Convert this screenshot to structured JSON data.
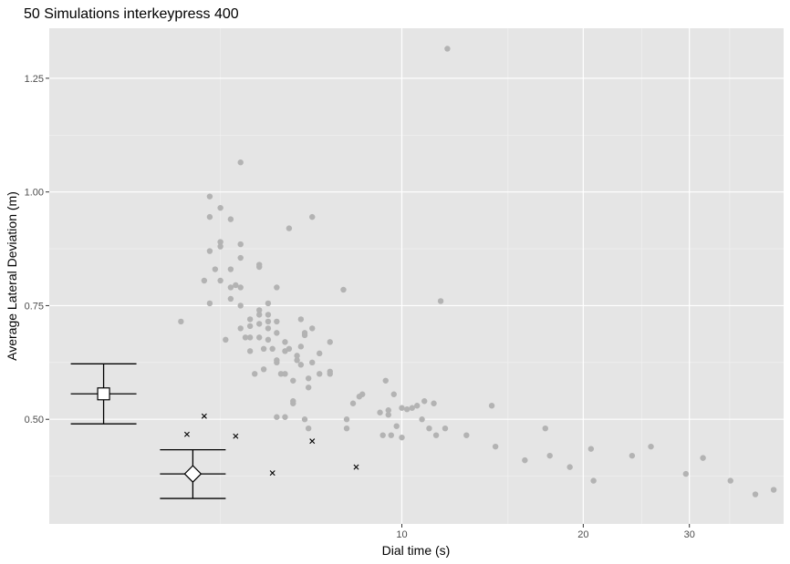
{
  "chart_data": {
    "type": "scatter",
    "title": "50 Simulations interkeypress 400",
    "xlabel": "Dial time (s)",
    "ylabel": "Average Lateral Deviation (m)",
    "x_scale": "log",
    "xlim": [
      2.6,
      43
    ],
    "ylim": [
      0.27,
      1.36
    ],
    "x_major_ticks": [
      10,
      20,
      30
    ],
    "x_minor_ticks": [
      5,
      15,
      25,
      35
    ],
    "x_tick_labels": [
      "10",
      "20",
      "30"
    ],
    "y_major_ticks": [
      0.5,
      0.75,
      1.0,
      1.25
    ],
    "y_tick_labels": [
      "0.50",
      "0.75",
      "1.00",
      "1.25"
    ],
    "y_minor_ticks": [
      0.375,
      0.625,
      0.875,
      1.125
    ],
    "grid": true,
    "background": "#e5e5e5",
    "colors": {
      "simulation_point": "#b3b3b3",
      "human_point": "#000000",
      "summary": "#000000",
      "summary_fill": "#ffffff"
    },
    "series": [
      {
        "marker": "circle",
        "points": [
          [
            4.3,
            0.715
          ],
          [
            4.7,
            0.805
          ],
          [
            4.8,
            0.99
          ],
          [
            4.8,
            0.945
          ],
          [
            4.8,
            0.87
          ],
          [
            4.8,
            0.755
          ],
          [
            4.9,
            0.83
          ],
          [
            5.0,
            0.965
          ],
          [
            5.0,
            0.88
          ],
          [
            5.0,
            0.89
          ],
          [
            5.0,
            0.805
          ],
          [
            5.1,
            0.675
          ],
          [
            5.2,
            0.94
          ],
          [
            5.2,
            0.83
          ],
          [
            5.2,
            0.79
          ],
          [
            5.2,
            0.765
          ],
          [
            5.3,
            0.795
          ],
          [
            5.4,
            0.79
          ],
          [
            5.4,
            1.065
          ],
          [
            5.4,
            0.885
          ],
          [
            5.4,
            0.855
          ],
          [
            5.4,
            0.75
          ],
          [
            5.4,
            0.7
          ],
          [
            5.5,
            0.68
          ],
          [
            5.6,
            0.72
          ],
          [
            5.6,
            0.705
          ],
          [
            5.6,
            0.68
          ],
          [
            5.6,
            0.65
          ],
          [
            5.7,
            0.6
          ],
          [
            5.8,
            0.84
          ],
          [
            5.8,
            0.835
          ],
          [
            5.8,
            0.74
          ],
          [
            5.8,
            0.73
          ],
          [
            5.8,
            0.71
          ],
          [
            5.8,
            0.68
          ],
          [
            5.9,
            0.61
          ],
          [
            5.9,
            0.655
          ],
          [
            6.0,
            0.755
          ],
          [
            6.0,
            0.73
          ],
          [
            6.0,
            0.715
          ],
          [
            6.0,
            0.7
          ],
          [
            6.0,
            0.675
          ],
          [
            6.1,
            0.655
          ],
          [
            6.2,
            0.79
          ],
          [
            6.2,
            0.715
          ],
          [
            6.2,
            0.69
          ],
          [
            6.2,
            0.625
          ],
          [
            6.2,
            0.63
          ],
          [
            6.2,
            0.505
          ],
          [
            6.3,
            0.6
          ],
          [
            6.4,
            0.67
          ],
          [
            6.4,
            0.65
          ],
          [
            6.4,
            0.6
          ],
          [
            6.4,
            0.505
          ],
          [
            6.5,
            0.92
          ],
          [
            6.5,
            0.655
          ],
          [
            6.6,
            0.585
          ],
          [
            6.6,
            0.54
          ],
          [
            6.6,
            0.535
          ],
          [
            6.7,
            0.64
          ],
          [
            6.7,
            0.63
          ],
          [
            6.8,
            0.72
          ],
          [
            6.8,
            0.66
          ],
          [
            6.8,
            0.62
          ],
          [
            6.9,
            0.69
          ],
          [
            6.9,
            0.685
          ],
          [
            6.9,
            0.5
          ],
          [
            7.0,
            0.59
          ],
          [
            7.0,
            0.57
          ],
          [
            7.0,
            0.48
          ],
          [
            7.1,
            0.945
          ],
          [
            7.1,
            0.7
          ],
          [
            7.1,
            0.625
          ],
          [
            7.3,
            0.6
          ],
          [
            7.3,
            0.645
          ],
          [
            7.6,
            0.67
          ],
          [
            7.6,
            0.6
          ],
          [
            7.6,
            0.605
          ],
          [
            8.0,
            0.785
          ],
          [
            8.1,
            0.5
          ],
          [
            8.1,
            0.48
          ],
          [
            8.3,
            0.535
          ],
          [
            8.5,
            0.55
          ],
          [
            8.6,
            0.555
          ],
          [
            9.2,
            0.515
          ],
          [
            9.3,
            0.465
          ],
          [
            9.4,
            0.585
          ],
          [
            9.5,
            0.52
          ],
          [
            9.5,
            0.51
          ],
          [
            9.6,
            0.465
          ],
          [
            9.7,
            0.555
          ],
          [
            9.8,
            0.485
          ],
          [
            10.0,
            0.46
          ],
          [
            10.0,
            0.525
          ],
          [
            10.4,
            0.525
          ],
          [
            10.6,
            0.53
          ],
          [
            10.8,
            0.5
          ],
          [
            10.9,
            0.54
          ],
          [
            11.1,
            0.48
          ],
          [
            11.4,
            0.465
          ],
          [
            11.6,
            0.76
          ],
          [
            11.8,
            0.48
          ],
          [
            12.8,
            0.465
          ],
          [
            14.1,
            0.53
          ],
          [
            14.3,
            0.44
          ],
          [
            16.0,
            0.41
          ],
          [
            17.3,
            0.48
          ],
          [
            17.6,
            0.42
          ],
          [
            19.0,
            0.395
          ],
          [
            20.6,
            0.435
          ],
          [
            20.8,
            0.365
          ],
          [
            24.1,
            0.42
          ],
          [
            25.9,
            0.44
          ],
          [
            29.6,
            0.38
          ],
          [
            31.6,
            0.415
          ],
          [
            35.1,
            0.365
          ],
          [
            38.6,
            0.335
          ],
          [
            41.4,
            0.345
          ],
          [
            11.9,
            1.315
          ],
          [
            10.2,
            0.522
          ],
          [
            11.3,
            0.535
          ]
        ]
      },
      {
        "marker": "x",
        "points": [
          [
            4.4,
            0.467
          ],
          [
            4.7,
            0.507
          ],
          [
            5.3,
            0.463
          ],
          [
            6.1,
            0.382
          ],
          [
            7.1,
            0.452
          ],
          [
            8.4,
            0.395
          ]
        ]
      }
    ],
    "summaries": [
      {
        "marker": "square",
        "x": 3.2,
        "mean": 0.556,
        "sd_low": 0.49,
        "sd_high": 0.622,
        "se_low": 0.535,
        "se_high": 0.577
      },
      {
        "marker": "diamond",
        "x": 4.5,
        "mean": 0.38,
        "sd_low": 0.326,
        "sd_high": 0.433,
        "se_low": 0.36,
        "se_high": 0.4
      }
    ]
  }
}
